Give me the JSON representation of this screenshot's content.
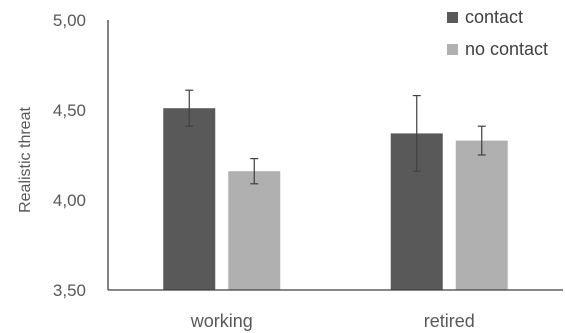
{
  "chart_data": {
    "type": "bar",
    "categories": [
      "working",
      "retired"
    ],
    "series": [
      {
        "name": "contact",
        "values": [
          4.51,
          4.37
        ],
        "error": [
          0.1,
          0.21
        ],
        "color": "#595959"
      },
      {
        "name": "no contact",
        "values": [
          4.16,
          4.33
        ],
        "error": [
          0.07,
          0.08
        ],
        "color": "#b0b0b0"
      }
    ],
    "ylabel": "Realistic threat",
    "ylim": [
      3.5,
      5.0
    ],
    "yticks": [
      "3,50",
      "4,00",
      "4,50",
      "5,00"
    ],
    "grid": false,
    "legend_position": "top-right"
  }
}
